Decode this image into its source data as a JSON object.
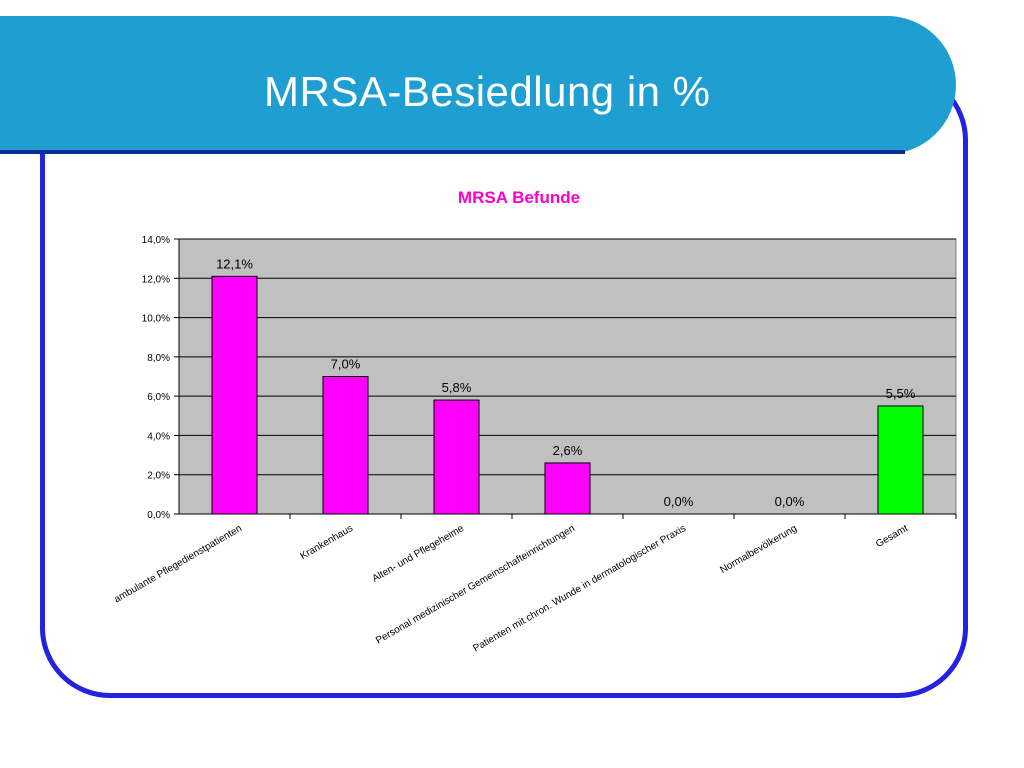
{
  "slide": {
    "title": "MRSA-Besiedlung in %"
  },
  "colors": {
    "header": "#1f9fd1",
    "frame": "#2222e0",
    "plot_bg": "#c0c0c0",
    "bar_magenta": "#ff00ff",
    "bar_green": "#00ff00",
    "chart_title": "#ff00cc"
  },
  "chart_data": {
    "type": "bar",
    "title": "MRSA Befunde",
    "xlabel": "",
    "ylabel": "",
    "categories": [
      "ambulante Pflegedienstpatienten",
      "Krankenhaus",
      "Alten- und Pflegeheime",
      "Personal medizinischer Gemeinschafteinrichtungen",
      "Patienten mit chron. Wunde in dermatologischer Praxis",
      "Normalbevölkerung",
      "Gesamt"
    ],
    "values": [
      12.1,
      7.0,
      5.8,
      2.6,
      0.0,
      0.0,
      5.5
    ],
    "data_labels": [
      "12,1%",
      "7,0%",
      "5,8%",
      "2,6%",
      "0,0%",
      "0,0%",
      "5,5%"
    ],
    "bar_colors": [
      "#ff00ff",
      "#ff00ff",
      "#ff00ff",
      "#ff00ff",
      "#ff00ff",
      "#ff00ff",
      "#00ff00"
    ],
    "ylim": [
      0,
      14
    ],
    "yticks": [
      0,
      2,
      4,
      6,
      8,
      10,
      12,
      14
    ],
    "ytick_labels": [
      "0,0%",
      "2,0%",
      "4,0%",
      "6,0%",
      "8,0%",
      "10,0%",
      "12,0%",
      "14,0%"
    ],
    "grid": true,
    "legend": "none"
  }
}
